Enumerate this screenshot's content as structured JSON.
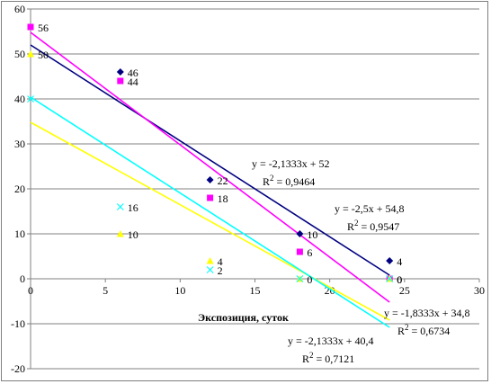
{
  "chart_data": {
    "type": "scatter",
    "title": "",
    "xlabel": "Экспозиция, суток",
    "ylabel": "",
    "xlim": [
      0,
      30
    ],
    "ylim": [
      -20,
      60
    ],
    "x_ticks": [
      0,
      5,
      10,
      15,
      20,
      25,
      30
    ],
    "y_ticks": [
      -20,
      -10,
      0,
      10,
      20,
      30,
      40,
      50,
      60
    ],
    "grid": "horizontal",
    "legend": "none",
    "series": [
      {
        "color": "#000080",
        "marker": "diamond",
        "points": [
          {
            "x": 6,
            "y": 46,
            "label": "46"
          },
          {
            "x": 12,
            "y": 22,
            "label": "22"
          },
          {
            "x": 18,
            "y": 10,
            "label": "10"
          },
          {
            "x": 24,
            "y": 4,
            "label": "4"
          }
        ],
        "trendline": {
          "x": [
            0,
            24
          ],
          "y": [
            52,
            0.8
          ],
          "equation": "y = -2,1333x + 52",
          "r2_prefix": "R",
          "r2_exp": "2",
          "r2_value": " = 0,9464"
        }
      },
      {
        "color": "#ff00ff",
        "marker": "square",
        "points": [
          {
            "x": 0,
            "y": 56,
            "label": "56"
          },
          {
            "x": 6,
            "y": 44,
            "label": "44"
          },
          {
            "x": 12,
            "y": 18,
            "label": "18"
          },
          {
            "x": 18,
            "y": 6,
            "label": "6"
          },
          {
            "x": 24,
            "y": 0,
            "label": "0"
          }
        ],
        "trendline": {
          "x": [
            0,
            24
          ],
          "y": [
            54.8,
            -5.2
          ],
          "equation": "y = -2,5x + 54,8",
          "r2_prefix": "R",
          "r2_exp": "2",
          "r2_value": " = 0,9547"
        }
      },
      {
        "color": "#ffff00",
        "marker": "triangle",
        "points": [
          {
            "x": 0,
            "y": 50,
            "label": "50"
          },
          {
            "x": 6,
            "y": 10,
            "label": "10"
          },
          {
            "x": 12,
            "y": 4,
            "label": "4"
          },
          {
            "x": 18,
            "y": 0,
            "label": "0"
          },
          {
            "x": 24,
            "y": 0,
            "label": "0"
          }
        ],
        "trendline": {
          "x": [
            0,
            24
          ],
          "y": [
            34.8,
            -9.2
          ],
          "equation": "y = -1,8333x + 34,8",
          "r2_prefix": "R",
          "r2_exp": "2",
          "r2_value": " = 0,6734"
        }
      },
      {
        "color": "#00ffff",
        "marker": "x",
        "points": [
          {
            "x": 0,
            "y": 40
          },
          {
            "x": 6,
            "y": 16,
            "label": "16"
          },
          {
            "x": 12,
            "y": 2,
            "label": "2"
          },
          {
            "x": 18,
            "y": 0
          },
          {
            "x": 24,
            "y": 0
          }
        ],
        "trendline": {
          "x": [
            0,
            24
          ],
          "y": [
            40.4,
            -10.8
          ],
          "equation": "y = -2,1333x + 40,4",
          "r2_prefix": "R",
          "r2_exp": "2",
          "r2_value": " = 0,7121"
        }
      }
    ]
  }
}
